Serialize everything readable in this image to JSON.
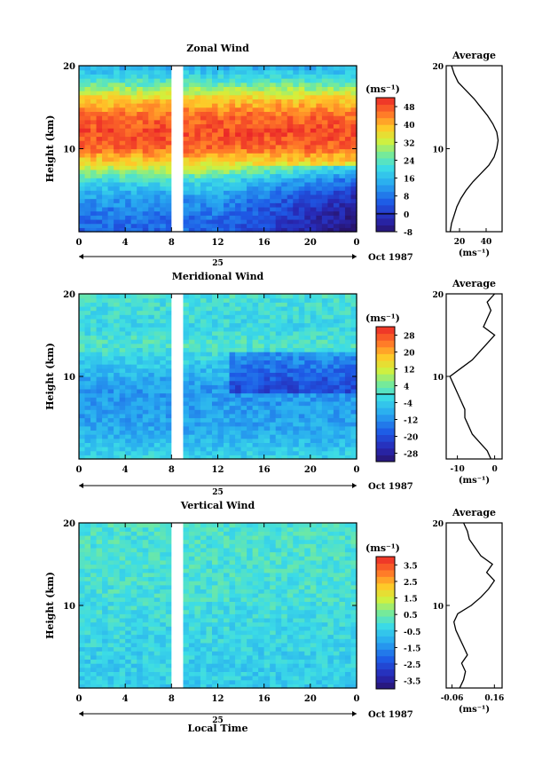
{
  "chart_data": [
    {
      "type": "heatmap",
      "title": "Zonal Wind",
      "ylabel": "Height (km)",
      "xlabel": "",
      "xlim": [
        0,
        24
      ],
      "ylim": [
        0,
        20
      ],
      "x_ticks": [
        "0",
        "4",
        "8",
        "12",
        "16",
        "20",
        "0"
      ],
      "y_ticks": [
        "10",
        "20"
      ],
      "date_label": "25",
      "date_right": "Oct 1987",
      "data_gap_hours": [
        8,
        9
      ],
      "colorbar": {
        "unit": "(ms⁻¹)",
        "ticks": [
          "-8",
          "0",
          "8",
          "16",
          "24",
          "32",
          "40",
          "48"
        ],
        "range": [
          -8,
          52
        ],
        "zero_line": 0
      },
      "field_profile": [
        {
          "h": 0,
          "v": 6
        },
        {
          "h": 2,
          "v": 8
        },
        {
          "h": 4,
          "v": 12
        },
        {
          "h": 6,
          "v": 20
        },
        {
          "h": 8,
          "v": 34
        },
        {
          "h": 10,
          "v": 46
        },
        {
          "h": 12,
          "v": 49
        },
        {
          "h": 14,
          "v": 46
        },
        {
          "h": 16,
          "v": 38
        },
        {
          "h": 18,
          "v": 24
        },
        {
          "h": 20,
          "v": 14
        }
      ],
      "average_panel": {
        "title": "Average",
        "xlabel": "(ms⁻¹)",
        "x_ticks": [
          "20",
          "40"
        ],
        "xlim": [
          10,
          52
        ],
        "y_ticks": [
          "10",
          "20"
        ],
        "ylim": [
          0,
          20
        ],
        "profile": [
          {
            "h": 0,
            "v": 13
          },
          {
            "h": 1,
            "v": 14
          },
          {
            "h": 2,
            "v": 16
          },
          {
            "h": 3,
            "v": 18
          },
          {
            "h": 4,
            "v": 21
          },
          {
            "h": 5,
            "v": 25
          },
          {
            "h": 6,
            "v": 30
          },
          {
            "h": 7,
            "v": 36
          },
          {
            "h": 8,
            "v": 42
          },
          {
            "h": 9,
            "v": 46
          },
          {
            "h": 10,
            "v": 48
          },
          {
            "h": 11,
            "v": 49
          },
          {
            "h": 12,
            "v": 48
          },
          {
            "h": 13,
            "v": 45
          },
          {
            "h": 14,
            "v": 41
          },
          {
            "h": 15,
            "v": 36
          },
          {
            "h": 16,
            "v": 31
          },
          {
            "h": 17,
            "v": 25
          },
          {
            "h": 18,
            "v": 19
          },
          {
            "h": 19,
            "v": 16
          },
          {
            "h": 20,
            "v": 14
          }
        ]
      }
    },
    {
      "type": "heatmap",
      "title": "Meridional Wind",
      "ylabel": "Height (km)",
      "xlabel": "",
      "xlim": [
        0,
        24
      ],
      "ylim": [
        0,
        20
      ],
      "x_ticks": [
        "0",
        "4",
        "8",
        "12",
        "16",
        "20",
        "0"
      ],
      "y_ticks": [
        "10",
        "20"
      ],
      "date_label": "25",
      "date_right": "Oct 1987",
      "data_gap_hours": [
        8,
        9
      ],
      "colorbar": {
        "unit": "(ms⁻¹)",
        "ticks": [
          "-28",
          "-20",
          "-12",
          "-4",
          "4",
          "12",
          "20",
          "28"
        ],
        "range": [
          -32,
          32
        ],
        "zero_line": 0
      },
      "field_profile": [
        {
          "h": 0,
          "v": -2
        },
        {
          "h": 2,
          "v": -6
        },
        {
          "h": 4,
          "v": -9
        },
        {
          "h": 6,
          "v": -10
        },
        {
          "h": 8,
          "v": -11
        },
        {
          "h": 10,
          "v": -8
        },
        {
          "h": 12,
          "v": -3
        },
        {
          "h": 14,
          "v": 1
        },
        {
          "h": 16,
          "v": -2
        },
        {
          "h": 18,
          "v": -1
        },
        {
          "h": 20,
          "v": 0
        }
      ],
      "average_panel": {
        "title": "Average",
        "xlabel": "(ms⁻¹)",
        "x_ticks": [
          "-10",
          "0"
        ],
        "xlim": [
          -13,
          2
        ],
        "y_ticks": [
          "10",
          "20"
        ],
        "ylim": [
          0,
          20
        ],
        "profile": [
          {
            "h": 0,
            "v": -1
          },
          {
            "h": 1,
            "v": -2
          },
          {
            "h": 2,
            "v": -4
          },
          {
            "h": 3,
            "v": -6
          },
          {
            "h": 4,
            "v": -7
          },
          {
            "h": 5,
            "v": -8
          },
          {
            "h": 6,
            "v": -8
          },
          {
            "h": 7,
            "v": -9
          },
          {
            "h": 8,
            "v": -10
          },
          {
            "h": 9,
            "v": -11
          },
          {
            "h": 10,
            "v": -12
          },
          {
            "h": 11,
            "v": -9
          },
          {
            "h": 12,
            "v": -6
          },
          {
            "h": 13,
            "v": -4
          },
          {
            "h": 14,
            "v": -2
          },
          {
            "h": 15,
            "v": 0
          },
          {
            "h": 16,
            "v": -3
          },
          {
            "h": 17,
            "v": -2
          },
          {
            "h": 18,
            "v": -1
          },
          {
            "h": 19,
            "v": -2
          },
          {
            "h": 20,
            "v": 0
          }
        ]
      }
    },
    {
      "type": "heatmap",
      "title": "Vertical Wind",
      "ylabel": "Height (km)",
      "xlabel": "Local Time",
      "xlim": [
        0,
        24
      ],
      "ylim": [
        0,
        20
      ],
      "x_ticks": [
        "0",
        "4",
        "8",
        "12",
        "16",
        "20",
        "0"
      ],
      "y_ticks": [
        "10",
        "20"
      ],
      "date_label": "25",
      "date_right": "Oct 1987",
      "data_gap_hours": [
        8,
        9
      ],
      "colorbar": {
        "unit": "(ms⁻¹)",
        "ticks": [
          "-3.5",
          "-2.5",
          "-1.5",
          "-0.5",
          "0.5",
          "1.5",
          "2.5",
          "3.5"
        ],
        "range": [
          -4,
          4
        ],
        "zero_line": null
      },
      "field_profile": [
        {
          "h": 0,
          "v": -0.5
        },
        {
          "h": 4,
          "v": -0.4
        },
        {
          "h": 8,
          "v": -0.2
        },
        {
          "h": 12,
          "v": 0.0
        },
        {
          "h": 16,
          "v": 0.05
        },
        {
          "h": 20,
          "v": 0.05
        }
      ],
      "average_panel": {
        "title": "Average",
        "xlabel": "(ms⁻¹)",
        "x_ticks": [
          "-0.06",
          "0.16"
        ],
        "xlim": [
          -0.09,
          0.2
        ],
        "y_ticks": [
          "10",
          "20"
        ],
        "ylim": [
          0,
          20
        ],
        "profile": [
          {
            "h": 0,
            "v": -0.02
          },
          {
            "h": 1,
            "v": 0.0
          },
          {
            "h": 2,
            "v": 0.01
          },
          {
            "h": 3,
            "v": -0.01
          },
          {
            "h": 4,
            "v": 0.02
          },
          {
            "h": 5,
            "v": 0.0
          },
          {
            "h": 6,
            "v": -0.02
          },
          {
            "h": 7,
            "v": -0.04
          },
          {
            "h": 8,
            "v": -0.05
          },
          {
            "h": 9,
            "v": -0.03
          },
          {
            "h": 10,
            "v": 0.04
          },
          {
            "h": 11,
            "v": 0.09
          },
          {
            "h": 12,
            "v": 0.13
          },
          {
            "h": 13,
            "v": 0.16
          },
          {
            "h": 14,
            "v": 0.12
          },
          {
            "h": 15,
            "v": 0.15
          },
          {
            "h": 16,
            "v": 0.09
          },
          {
            "h": 17,
            "v": 0.06
          },
          {
            "h": 18,
            "v": 0.03
          },
          {
            "h": 19,
            "v": 0.02
          },
          {
            "h": 20,
            "v": 0.0
          }
        ]
      }
    }
  ]
}
